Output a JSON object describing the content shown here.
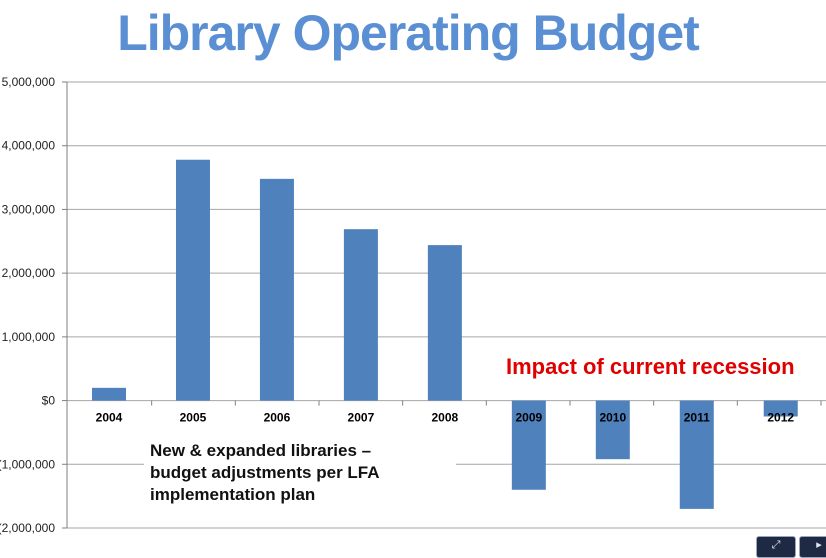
{
  "title": "Library Operating Budget",
  "chart_data": {
    "type": "bar",
    "title": "Library Operating Budget",
    "categories": [
      "2004",
      "2005",
      "2006",
      "2007",
      "2008",
      "2009",
      "2010",
      "2011",
      "2012"
    ],
    "values": [
      200000,
      3780000,
      3480000,
      2690000,
      2440000,
      -1400000,
      -920000,
      -1700000,
      -250000
    ],
    "ylim": [
      -2000000,
      5000000
    ],
    "yticks": [
      -2000000,
      -1000000,
      0,
      1000000,
      2000000,
      3000000,
      4000000,
      5000000
    ],
    "ytick_labels": [
      "(2,000,000",
      "(1,000,000",
      "$0",
      "1,000,000",
      "2,000,000",
      "3,000,000",
      "4,000,000",
      "5,000,000"
    ],
    "bar_color": "#4f81bd",
    "grid": true,
    "annotations": [
      "New & expanded libraries – budget adjustments per LFA implementation plan",
      "Impact of current recession"
    ]
  },
  "annotations": {
    "note_lines": [
      "New & expanded libraries –",
      "budget adjustments per LFA",
      "implementation plan"
    ],
    "impact": "Impact of current recession",
    "impact_color": "#e00000"
  },
  "controls": [
    "fit-screen-icon",
    "next-icon"
  ]
}
